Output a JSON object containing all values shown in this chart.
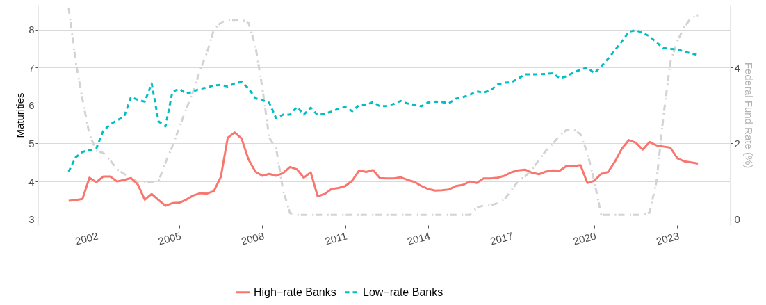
{
  "chart_data": {
    "type": "line",
    "ylabel": "Maturities",
    "y2label": "Federal Fund Rate (%)",
    "x": [
      2001,
      2001.25,
      2001.5,
      2001.75,
      2002,
      2002.25,
      2002.5,
      2002.75,
      2003,
      2003.25,
      2003.5,
      2003.75,
      2004,
      2004.25,
      2004.5,
      2004.75,
      2005,
      2005.25,
      2005.5,
      2005.75,
      2006,
      2006.25,
      2006.5,
      2006.75,
      2007,
      2007.25,
      2007.5,
      2007.75,
      2008,
      2008.25,
      2008.5,
      2008.75,
      2009,
      2009.25,
      2009.5,
      2009.75,
      2010,
      2010.25,
      2010.5,
      2010.75,
      2011,
      2011.25,
      2011.5,
      2011.75,
      2012,
      2012.25,
      2012.5,
      2012.75,
      2013,
      2013.25,
      2013.5,
      2013.75,
      2014,
      2014.25,
      2014.5,
      2014.75,
      2015,
      2015.25,
      2015.5,
      2015.75,
      2016,
      2016.25,
      2016.5,
      2016.75,
      2017,
      2017.25,
      2017.5,
      2017.75,
      2018,
      2018.25,
      2018.5,
      2018.75,
      2019,
      2019.25,
      2019.5,
      2019.75,
      2020,
      2020.25,
      2020.5,
      2020.75,
      2021,
      2021.25,
      2021.5,
      2021.75,
      2022,
      2022.25,
      2022.5,
      2022.75,
      2023,
      2023.25,
      2023.5,
      2023.75
    ],
    "series": [
      {
        "name": "High−rate Banks",
        "color": "#f8766d",
        "line_style": "solid",
        "values": [
          3.49,
          3.51,
          3.54,
          4.1,
          3.98,
          4.13,
          4.13,
          4.0,
          4.04,
          4.09,
          3.92,
          3.52,
          3.67,
          3.51,
          3.36,
          3.43,
          3.44,
          3.52,
          3.63,
          3.69,
          3.68,
          3.75,
          4.12,
          5.15,
          5.29,
          5.13,
          4.58,
          4.26,
          4.15,
          4.2,
          4.15,
          4.22,
          4.38,
          4.32,
          4.1,
          4.24,
          3.61,
          3.67,
          3.8,
          3.83,
          3.88,
          4.02,
          4.29,
          4.25,
          4.3,
          4.09,
          4.08,
          4.08,
          4.11,
          4.04,
          3.99,
          3.88,
          3.8,
          3.76,
          3.77,
          3.79,
          3.88,
          3.91,
          4.0,
          3.96,
          4.08,
          4.08,
          4.1,
          4.15,
          4.24,
          4.29,
          4.31,
          4.23,
          4.19,
          4.26,
          4.29,
          4.28,
          4.41,
          4.4,
          4.43,
          3.96,
          4.02,
          4.2,
          4.25,
          4.53,
          4.87,
          5.09,
          5.02,
          4.84,
          5.04,
          4.95,
          4.92,
          4.89,
          4.61,
          4.53,
          4.5,
          4.47
        ]
      },
      {
        "name": "Low−rate Banks",
        "color": "#00bfc4",
        "line_style": "dashed",
        "values": [
          4.26,
          4.63,
          4.78,
          4.82,
          4.87,
          5.33,
          5.5,
          5.61,
          5.7,
          6.22,
          6.15,
          6.1,
          6.58,
          5.58,
          5.45,
          6.36,
          6.44,
          6.31,
          6.37,
          6.44,
          6.47,
          6.53,
          6.54,
          6.5,
          6.58,
          6.62,
          6.45,
          6.19,
          6.14,
          6.07,
          5.66,
          5.76,
          5.76,
          5.96,
          5.76,
          5.94,
          5.75,
          5.78,
          5.84,
          5.91,
          5.96,
          5.85,
          6.01,
          6.01,
          6.09,
          5.98,
          5.99,
          6.04,
          6.12,
          6.05,
          6.02,
          5.98,
          6.08,
          6.1,
          6.09,
          6.06,
          6.18,
          6.22,
          6.28,
          6.37,
          6.34,
          6.4,
          6.55,
          6.6,
          6.61,
          6.71,
          6.82,
          6.82,
          6.82,
          6.83,
          6.85,
          6.72,
          6.77,
          6.87,
          6.94,
          7.0,
          6.85,
          7.03,
          7.23,
          7.46,
          7.69,
          7.94,
          7.98,
          7.91,
          7.82,
          7.66,
          7.51,
          7.49,
          7.48,
          7.42,
          7.37,
          7.33
        ]
      },
      {
        "color": "#d3d3d3",
        "line_style": "dashed",
        "axis": "y2",
        "values": [
          5.58,
          4.17,
          3.16,
          2.24,
          1.81,
          1.75,
          1.56,
          1.32,
          1.2,
          1.1,
          0.98,
          0.98,
          0.98,
          1.01,
          1.5,
          1.93,
          2.42,
          2.91,
          3.37,
          3.93,
          4.39,
          5.0,
          5.18,
          5.26,
          5.25,
          5.26,
          5.18,
          4.57,
          3.47,
          2.15,
          1.87,
          0.77,
          0.17,
          0.12,
          0.12,
          0.12,
          0.12,
          0.12,
          0.12,
          0.12,
          0.12,
          0.12,
          0.12,
          0.12,
          0.12,
          0.12,
          0.12,
          0.12,
          0.12,
          0.12,
          0.12,
          0.12,
          0.12,
          0.12,
          0.12,
          0.12,
          0.12,
          0.12,
          0.12,
          0.31,
          0.37,
          0.37,
          0.43,
          0.52,
          0.77,
          1.01,
          1.13,
          1.32,
          1.56,
          1.81,
          1.99,
          2.21,
          2.36,
          2.38,
          2.24,
          1.75,
          1.01,
          0.12,
          0.12,
          0.12,
          0.12,
          0.12,
          0.12,
          0.12,
          0.18,
          1.01,
          2.73,
          4.14,
          4.69,
          5.06,
          5.31,
          5.38
        ]
      }
    ],
    "xlim": [
      1999.9,
      2024.9
    ],
    "xticks": [
      2002,
      2005,
      2008,
      2011,
      2014,
      2017,
      2020,
      2023
    ],
    "ylim": [
      2.85,
      8.65
    ],
    "yticks": [
      3,
      4,
      5,
      6,
      7,
      8
    ],
    "y2lim": [
      -0.15,
      5.65
    ],
    "y2ticks": [
      0,
      2,
      4
    ],
    "grid": "y",
    "legend": "bottom",
    "marker": "none"
  }
}
